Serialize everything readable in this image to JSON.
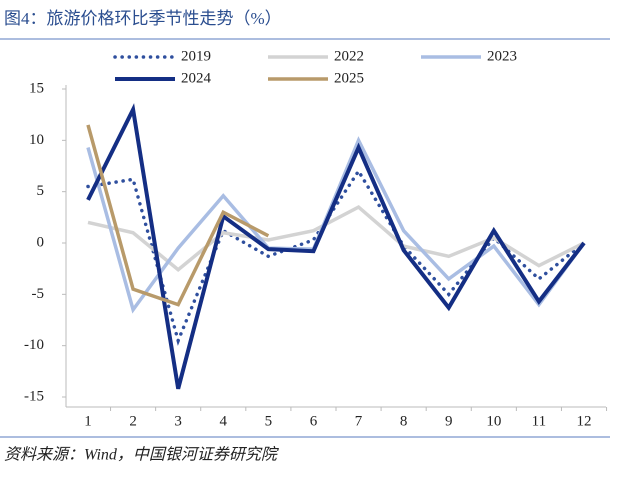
{
  "chart_data": {
    "type": "line",
    "title": "图4：旅游价格环比季节性走势（%）",
    "source": "资料来源：Wind，中国银河证券研究院",
    "categories": [
      "1",
      "2",
      "3",
      "4",
      "5",
      "6",
      "7",
      "8",
      "9",
      "10",
      "11",
      "12"
    ],
    "ylim": [
      -15,
      15
    ],
    "yticks": [
      -15,
      -10,
      -5,
      0,
      5,
      10,
      15
    ],
    "series": [
      {
        "name": "2019",
        "color": "#2f4f9e",
        "style": "dotted",
        "width": 3.5,
        "values": [
          5.5,
          6.2,
          -9.5,
          1.2,
          -1.3,
          0.3,
          7,
          -0.3,
          -5,
          0.5,
          -3.5,
          0
        ]
      },
      {
        "name": "2022",
        "color": "#d3d3d3",
        "style": "solid",
        "width": 3.5,
        "values": [
          2,
          1,
          -2.6,
          1,
          0.3,
          1.2,
          3.5,
          -0.3,
          -1.3,
          0.5,
          -2.2,
          0
        ]
      },
      {
        "name": "2023",
        "color": "#a9bde3",
        "style": "solid",
        "width": 3.5,
        "values": [
          9.3,
          -6.5,
          -0.5,
          4.6,
          -0.5,
          -0.6,
          10,
          1.2,
          -3.5,
          -0.3,
          -6,
          0
        ]
      },
      {
        "name": "2024",
        "color": "#142e84",
        "style": "solid",
        "width": 4,
        "values": [
          4.2,
          13,
          -14.2,
          2.6,
          -0.6,
          -0.8,
          9.3,
          -0.7,
          -6.3,
          1.2,
          -5.7,
          0
        ]
      },
      {
        "name": "2025",
        "color": "#b89a6a",
        "style": "solid",
        "width": 3.5,
        "values": [
          11.5,
          -4.5,
          -6,
          3,
          0.7,
          null,
          null,
          null,
          null,
          null,
          null,
          null
        ]
      }
    ]
  }
}
